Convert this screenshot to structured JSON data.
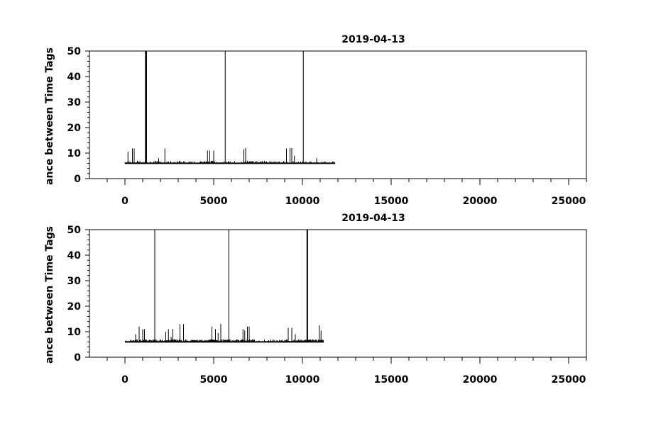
{
  "chart_data": [
    {
      "type": "line",
      "title": "2019-04-13",
      "ylabel": "ance between Time Tags",
      "xlabel": "",
      "xlim": [
        -2000,
        26000
      ],
      "ylim": [
        0,
        50
      ],
      "x_ticks": [
        0,
        5000,
        10000,
        15000,
        20000,
        25000
      ],
      "x_tick_labels": [
        "0",
        "5000",
        "10000",
        "15000",
        "20000",
        "25000"
      ],
      "y_ticks": [
        0,
        10,
        20,
        30,
        40,
        50
      ],
      "y_tick_labels": [
        "0",
        "10",
        "20",
        "30",
        "40",
        "50"
      ],
      "grid": false,
      "series": [
        {
          "baseline": 6,
          "x_range": [
            0,
            11850
          ],
          "color": "#000000",
          "noise_band": [
            [
              4300,
              5100,
              7
            ],
            [
              6900,
              7200,
              7
            ]
          ],
          "spikes": [
            [
              170,
              10.5
            ],
            [
              420,
              11.8
            ],
            [
              520,
              11.8
            ],
            [
              700,
              7
            ],
            [
              1150,
              50
            ],
            [
              1190,
              50
            ],
            [
              1220,
              50
            ],
            [
              1900,
              8
            ],
            [
              2250,
              11.8
            ],
            [
              3100,
              7
            ],
            [
              4650,
              11
            ],
            [
              4780,
              11
            ],
            [
              5000,
              11
            ],
            [
              5650,
              50
            ],
            [
              6700,
              11.5
            ],
            [
              6800,
              12
            ],
            [
              9100,
              11.8
            ],
            [
              9300,
              12
            ],
            [
              9400,
              12
            ],
            [
              9550,
              9
            ],
            [
              10050,
              50
            ],
            [
              10800,
              8
            ]
          ]
        }
      ]
    },
    {
      "type": "line",
      "title": "2019-04-13",
      "ylabel": "ance between Time Tags",
      "xlabel": "",
      "xlim": [
        -2000,
        26000
      ],
      "ylim": [
        0,
        50
      ],
      "x_ticks": [
        0,
        5000,
        10000,
        15000,
        20000,
        25000
      ],
      "x_tick_labels": [
        "0",
        "5000",
        "10000",
        "15000",
        "20000",
        "25000"
      ],
      "y_ticks": [
        0,
        10,
        20,
        30,
        40,
        50
      ],
      "y_tick_labels": [
        "0",
        "10",
        "20",
        "30",
        "40",
        "50"
      ],
      "grid": false,
      "series": [
        {
          "baseline": 6,
          "x_range": [
            0,
            11200
          ],
          "color": "#000000",
          "noise_band": [
            [
              400,
              7300,
              7
            ],
            [
              9000,
              11200,
              7
            ]
          ],
          "spikes": [
            [
              600,
              9
            ],
            [
              800,
              12
            ],
            [
              1000,
              11
            ],
            [
              1100,
              11
            ],
            [
              1680,
              50
            ],
            [
              2300,
              10
            ],
            [
              2450,
              11
            ],
            [
              2600,
              8
            ],
            [
              2700,
              11
            ],
            [
              3100,
              13
            ],
            [
              3300,
              13
            ],
            [
              4900,
              12
            ],
            [
              5100,
              11
            ],
            [
              5250,
              9.5
            ],
            [
              5400,
              13
            ],
            [
              5850,
              50
            ],
            [
              6650,
              11
            ],
            [
              6750,
              10.5
            ],
            [
              6900,
              12
            ],
            [
              7000,
              12
            ],
            [
              7200,
              7
            ],
            [
              9200,
              11.5
            ],
            [
              9400,
              11.5
            ],
            [
              9600,
              9
            ],
            [
              10250,
              50
            ],
            [
              10300,
              50
            ],
            [
              10950,
              12.5
            ],
            [
              11050,
              10.5
            ]
          ]
        }
      ]
    }
  ]
}
